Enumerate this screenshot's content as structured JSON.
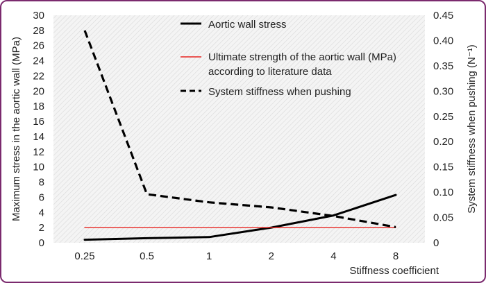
{
  "chart_data": {
    "type": "line",
    "title": "",
    "xlabel": "Stiffness coefficient",
    "ylabel_left": "Maximum stress in the aortic wall (MPa)",
    "ylabel_right": "System stiffness when pushing (N⁻¹)",
    "categories": [
      "0.25",
      "0.5",
      "1",
      "2",
      "4",
      "8"
    ],
    "y_left": {
      "min": 0,
      "max": 30,
      "step": 2,
      "ticks": [
        "0",
        "2",
        "4",
        "6",
        "8",
        "10",
        "12",
        "14",
        "16",
        "18",
        "20",
        "22",
        "24",
        "26",
        "28",
        "30"
      ]
    },
    "y_right": {
      "min": 0,
      "max": 0.45,
      "step": 0.05,
      "ticks": [
        "0",
        "0.05",
        "0.10",
        "0.15",
        "0.20",
        "0.25",
        "0.30",
        "0.35",
        "0.40",
        "0.45"
      ]
    },
    "grid": false,
    "background": "hatched",
    "legend_position": "top-center",
    "series": [
      {
        "name": "Aortic wall stress",
        "axis": "left",
        "style": "solid",
        "color": "#000000",
        "values": [
          0.4,
          0.6,
          0.75,
          2.0,
          3.6,
          6.3
        ]
      },
      {
        "name": "Ultimate strength of the aortic wall (MPa)",
        "name_line2": "according to literature data",
        "axis": "left",
        "style": "thin",
        "color": "#e8231f",
        "values": [
          2,
          2,
          2,
          2,
          2,
          2
        ]
      },
      {
        "name": "System stiffness when pushing",
        "axis": "right",
        "style": "dashed",
        "color": "#000000",
        "values": [
          0.42,
          0.096,
          0.08,
          0.07,
          0.053,
          0.031
        ]
      }
    ]
  }
}
